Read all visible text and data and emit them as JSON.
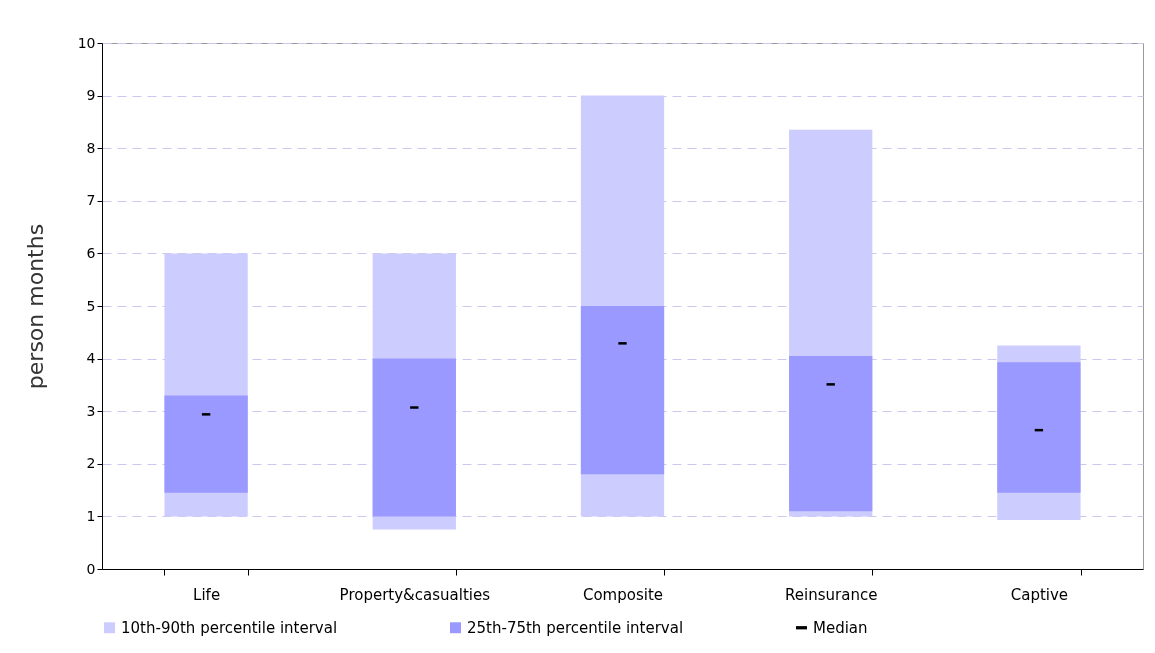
{
  "chart_data": {
    "type": "bar",
    "ylabel": "person months",
    "categories": [
      "Life",
      "Property&casualties",
      "Composite",
      "Reinsurance",
      "Captive"
    ],
    "series": [
      {
        "name": "10th-90th percentile interval",
        "color": "#ccccff",
        "base": [
          1.0,
          0.75,
          1.0,
          1.0,
          0.93
        ],
        "values": [
          5.0,
          5.25,
          8.0,
          7.35,
          3.32
        ]
      },
      {
        "name": "25th-75th percentile interval",
        "color": "#9999ff",
        "base": [
          1.45,
          1.0,
          1.8,
          1.1,
          1.45
        ],
        "values": [
          1.85,
          3.0,
          3.2,
          2.95,
          2.48
        ]
      },
      {
        "name": "Median",
        "type": "scatter",
        "color": "#000000",
        "x": [
          "Life",
          "Property&casualties",
          "Composite",
          "Reinsurance",
          "Captive"
        ],
        "values": [
          2.94,
          3.07,
          4.29,
          3.51,
          2.64
        ]
      }
    ],
    "ylim": [
      0,
      10
    ],
    "yticks": [
      0,
      1,
      2,
      3,
      4,
      5,
      6,
      7,
      8,
      9,
      10
    ],
    "grid": "y",
    "legend": "bottom"
  }
}
